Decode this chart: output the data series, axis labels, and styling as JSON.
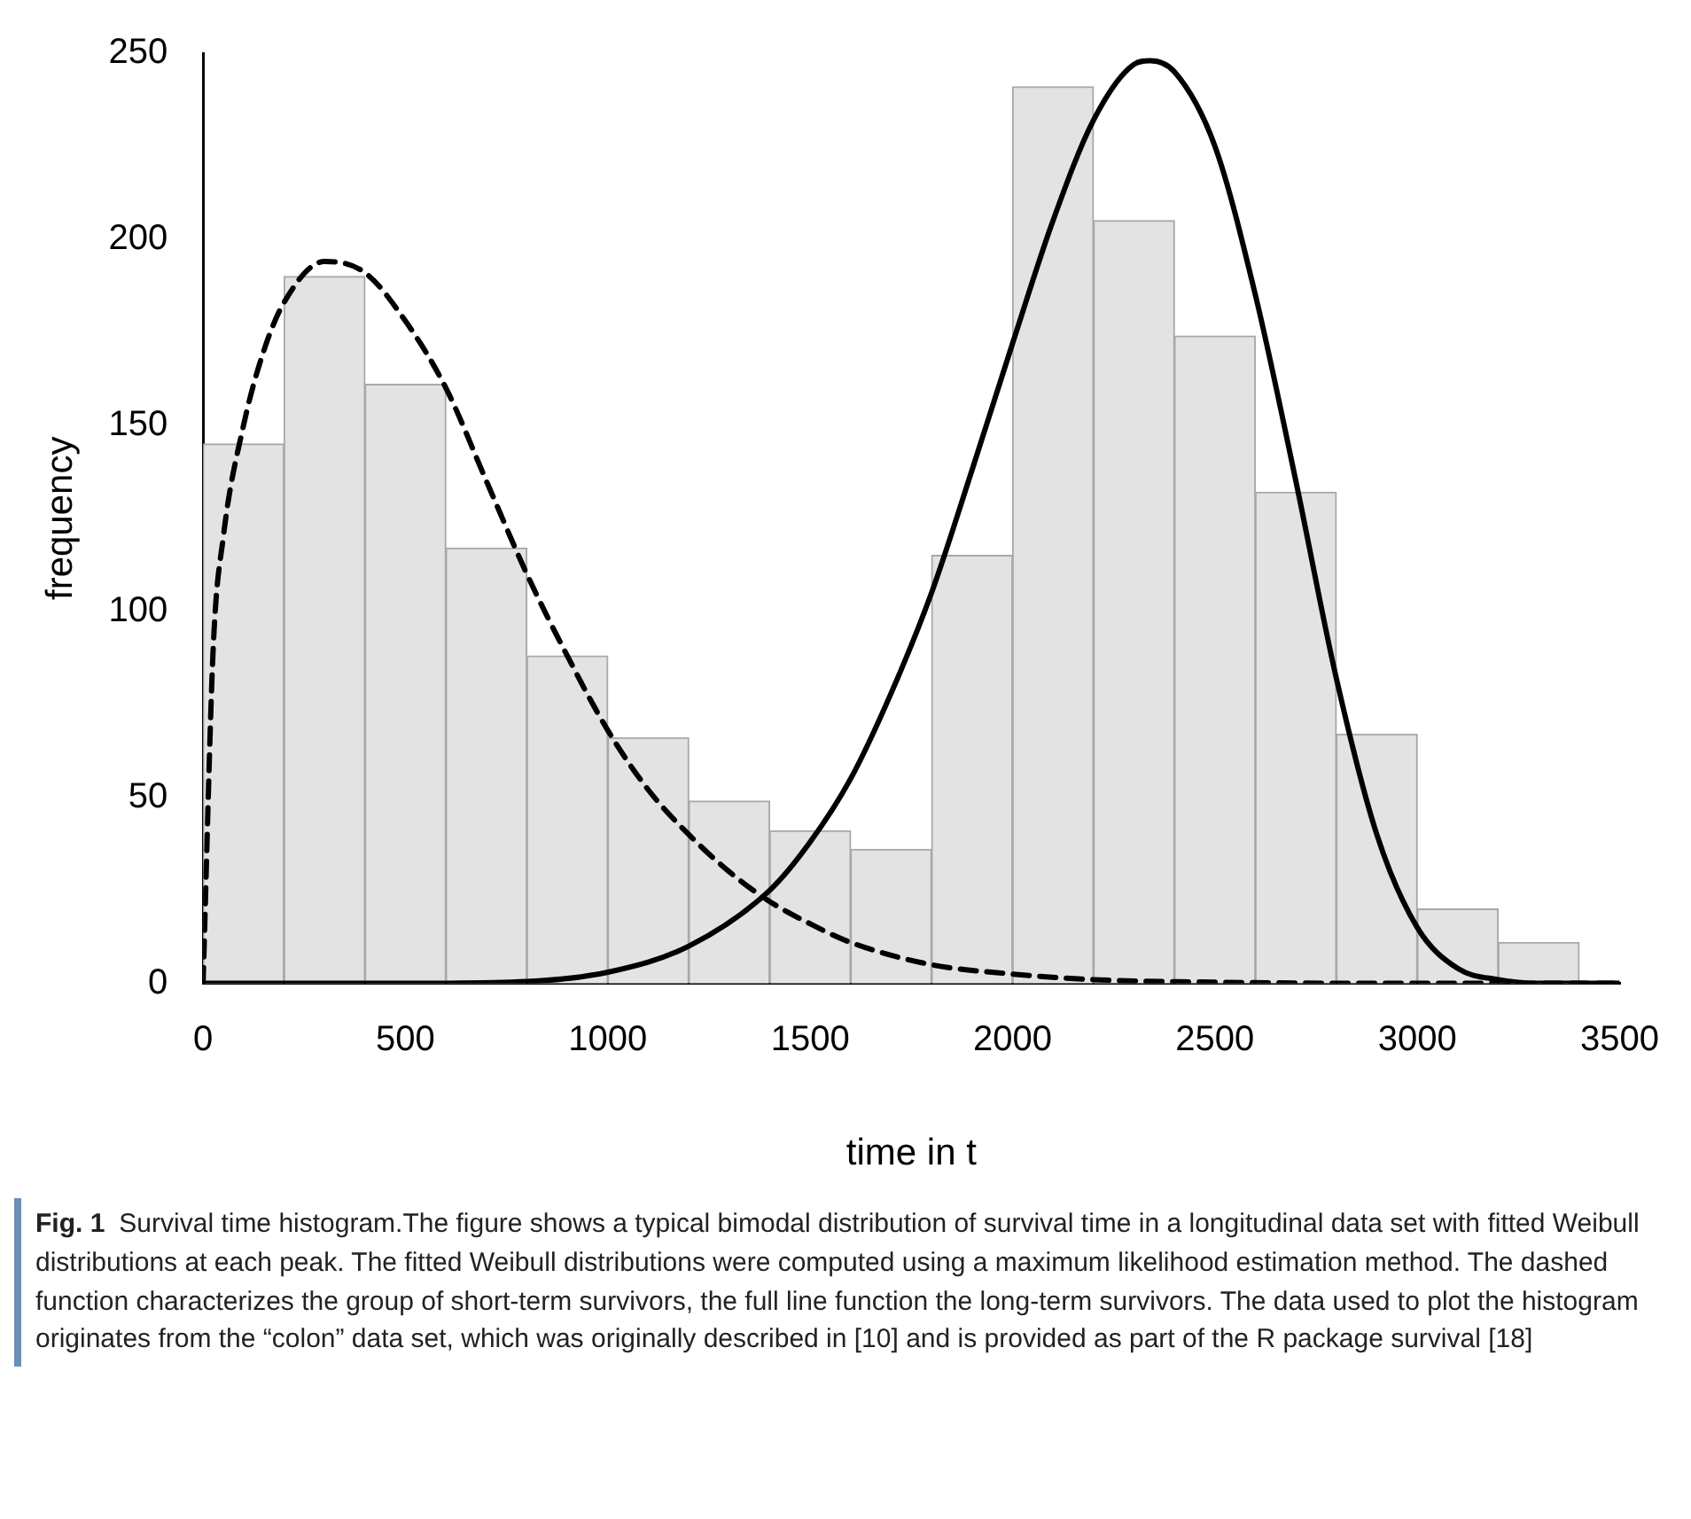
{
  "chart_data": {
    "type": "histogram",
    "xlabel": "time in t",
    "ylabel": "frequency",
    "bins": [
      0,
      200,
      400,
      600,
      800,
      1000,
      1200,
      1400,
      1600,
      1800,
      2000,
      2200,
      2400,
      2600,
      2800,
      3000,
      3200,
      3400
    ],
    "values": [
      145,
      190,
      161,
      117,
      88,
      66,
      49,
      41,
      36,
      115,
      241,
      205,
      174,
      132,
      67,
      20,
      11
    ],
    "color": "#e3e3e3",
    "series": [
      {
        "type": "line",
        "color": "#000000",
        "line_style": "dashed",
        "x": [
          0,
          25,
          50,
          100,
          150,
          200,
          300,
          400,
          500,
          600,
          700,
          800,
          900,
          1000,
          1100,
          1200,
          1300,
          1400,
          1500,
          1600,
          1800,
          2000,
          2200,
          2500,
          3000,
          3500
        ],
        "values": [
          0,
          90,
          120,
          150,
          170,
          183,
          194,
          191,
          178,
          160,
          135,
          110,
          88,
          68,
          52,
          40,
          30,
          22,
          16,
          11,
          5,
          2.5,
          1,
          0.3,
          0,
          0
        ]
      },
      {
        "type": "line",
        "color": "#000000",
        "line_style": "solid",
        "x": [
          0,
          500,
          800,
          1000,
          1200,
          1400,
          1500,
          1600,
          1700,
          1800,
          1900,
          2000,
          2100,
          2200,
          2300,
          2340,
          2400,
          2500,
          2600,
          2700,
          2800,
          2900,
          3000,
          3100,
          3200,
          3300,
          3500
        ],
        "values": [
          0,
          0,
          0.5,
          3,
          10,
          25,
          38,
          55,
          78,
          105,
          138,
          172,
          205,
          232,
          247,
          248,
          245,
          225,
          185,
          135,
          82,
          40,
          15,
          4,
          1,
          0,
          0
        ]
      }
    ],
    "xlim": [
      0,
      3500
    ],
    "xticks": [
      0,
      500,
      1000,
      1500,
      2000,
      2500,
      3000,
      3500
    ],
    "ylim": [
      0,
      250
    ],
    "yticks": [
      0,
      50,
      100,
      150,
      200,
      250
    ],
    "grid": false,
    "legend": false,
    "marker": "none",
    "annotations": [
      "Fig. 1",
      "Survival time histogram.The figure shows a typical bimodal distribution of survival time in a longitudinal data set with fitted Weibull distributions at each peak. The fitted Weibull distributions were computed using a maximum likelihood estimation method. The dashed function characterizes the group of short-term survivors, the full line function the long-term survivors. The data used to plot the histogram originates from the “colon” data set, which was originally described in [10] and is provided as part of the R package survival [18]"
    ]
  }
}
